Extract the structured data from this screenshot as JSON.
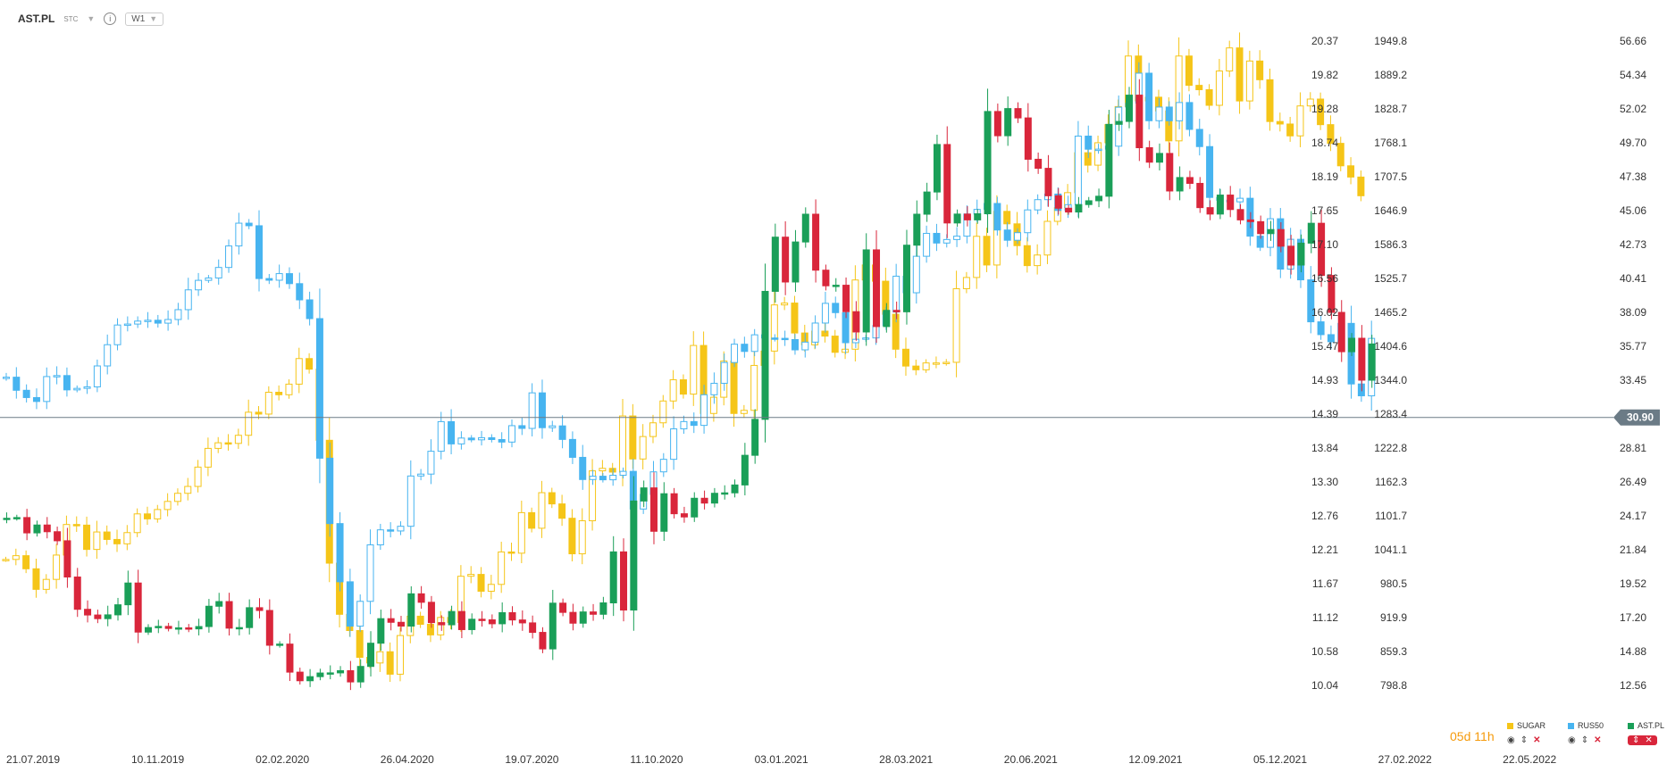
{
  "header": {
    "symbol": "AST.PL",
    "chart_kind": "STC",
    "interval": "W1"
  },
  "countdown": {
    "days": "05",
    "days_unit": "d",
    "hours": "11",
    "hours_unit": "h"
  },
  "legend": [
    {
      "name": "SUGAR",
      "color": "#f5c518"
    },
    {
      "name": "RUS50",
      "color": "#47b4f0"
    },
    {
      "name": "AST.PL",
      "color": "#1a9f58"
    }
  ],
  "colors": {
    "sugar": "#f5c518",
    "rus50": "#47b4f0",
    "ast_up": "#1a9f58",
    "ast_down": "#d9263b",
    "price_line": "#6b7b86",
    "price_tag": "#6b7b86"
  },
  "chart_data": {
    "type": "candlestick",
    "x_labels": [
      "21.07.2019",
      "10.11.2019",
      "02.02.2020",
      "26.04.2020",
      "19.07.2020",
      "11.10.2020",
      "03.01.2021",
      "28.03.2021",
      "20.06.2021",
      "12.09.2021",
      "05.12.2021",
      "27.02.2022",
      "22.05.2022"
    ],
    "axes": [
      {
        "name": "SUGAR",
        "ticks": [
          "20.37",
          "19.82",
          "19.28",
          "18.74",
          "18.19",
          "17.65",
          "17.10",
          "16.56",
          "16.02",
          "15.47",
          "14.93",
          "14.39",
          "13.84",
          "13.30",
          "12.76",
          "12.21",
          "11.67",
          "11.12",
          "10.58",
          "10.04"
        ],
        "range": [
          10.04,
          20.37
        ]
      },
      {
        "name": "RUS50",
        "ticks": [
          "1949.8",
          "1889.2",
          "1828.7",
          "1768.1",
          "1707.5",
          "1646.9",
          "1586.3",
          "1525.7",
          "1465.2",
          "1404.6",
          "1344.0",
          "1283.4",
          "1222.8",
          "1162.3",
          "1101.7",
          "1041.1",
          "980.5",
          "919.9",
          "859.3",
          "798.8"
        ],
        "range": [
          798.8,
          1949.8
        ]
      },
      {
        "name": "AST.PL",
        "ticks": [
          "56.66",
          "54.34",
          "52.02",
          "49.70",
          "47.38",
          "45.06",
          "42.73",
          "40.41",
          "38.09",
          "35.77",
          "33.45",
          "31.13",
          "28.81",
          "26.49",
          "24.17",
          "21.84",
          "19.52",
          "17.20",
          "14.88",
          "12.56"
        ],
        "range": [
          12.56,
          56.66
        ]
      }
    ],
    "current_price": "30.90",
    "series": [
      {
        "name": "SUGAR",
        "values": [
          12.06,
          12.12,
          11.91,
          11.58,
          11.74,
          12.13,
          12.62,
          12.61,
          12.22,
          12.5,
          12.38,
          12.31,
          12.49,
          12.79,
          12.71,
          12.86,
          12.99,
          13.12,
          13.23,
          13.54,
          13.84,
          13.93,
          13.92,
          14.05,
          14.42,
          14.39,
          14.74,
          14.7,
          14.87,
          15.28,
          15.11,
          13.97,
          12.0,
          11.18,
          10.92,
          10.49,
          10.4,
          10.58,
          10.22,
          10.84,
          11.15,
          11.02,
          10.85,
          11.13,
          11.05,
          11.79,
          11.82,
          11.55,
          11.66,
          12.18,
          12.16,
          12.81,
          12.56,
          13.13,
          12.95,
          12.72,
          12.15,
          12.68,
          13.48,
          13.52,
          13.46,
          14.36,
          13.67,
          14.03,
          14.25,
          14.6,
          14.94,
          14.71,
          15.49,
          14.4,
          14.66,
          15.24,
          14.4,
          14.45,
          15.17,
          15.4,
          16.14,
          16.17,
          15.69,
          15.5,
          15.72,
          15.64,
          15.38,
          15.43,
          16.54,
          16.78,
          16.52,
          15.99,
          15.43,
          15.16,
          15.1,
          15.21,
          15.21,
          15.22,
          16.4,
          16.58,
          17.24,
          16.78,
          17.64,
          17.44,
          17.09,
          16.77,
          16.94,
          17.48,
          17.7,
          17.94,
          18.58,
          18.38,
          18.74,
          19.03,
          19.32,
          20.13,
          19.41,
          19.47,
          19.25,
          18.77,
          20.13,
          19.66,
          19.59,
          19.34,
          19.89,
          20.26,
          19.41,
          20.05,
          19.75,
          19.08,
          19.04,
          18.85,
          19.33,
          19.44,
          19.03,
          18.73,
          18.37,
          18.19,
          17.89
        ]
      },
      {
        "name": "RUS50",
        "values": [
          1349.4,
          1326.0,
          1313.0,
          1306.0,
          1350.5,
          1352.3,
          1326.7,
          1329.4,
          1332.1,
          1369.5,
          1407.4,
          1442.6,
          1444.3,
          1449.6,
          1451.1,
          1445.9,
          1452.4,
          1470.0,
          1505.4,
          1522.4,
          1526.6,
          1545.4,
          1583.8,
          1624.5,
          1619.9,
          1525.6,
          1522.6,
          1534.4,
          1516.5,
          1487.5,
          1454.0,
          1204.7,
          1087.9,
          983.9,
          904.7,
          949.0,
          1049.9,
          1076.7,
          1074.7,
          1083.1,
          1172.9,
          1176.3,
          1217.1,
          1270.0,
          1230.2,
          1240.7,
          1237.5,
          1241.3,
          1238.0,
          1233.5,
          1262.8,
          1257.9,
          1321.4,
          1259.2,
          1262.4,
          1238.2,
          1206.2,
          1166.6,
          1172.5,
          1166.1,
          1174.2,
          1181.2,
          1113.9,
          1140.0,
          1180.3,
          1202.7,
          1257.1,
          1270.1,
          1263.3,
          1318.0,
          1338.5,
          1375.6,
          1408.3,
          1395.4,
          1425.1,
          1419.4,
          1418.8,
          1416.6,
          1398.2,
          1412.0,
          1446.1,
          1481.3,
          1464.7,
          1411.0,
          1417.1,
          1419.5,
          1441.7,
          1465.8,
          1529.8,
          1500.2,
          1565.4,
          1606.3,
          1589.0,
          1595.3,
          1601.3,
          1640.9,
          1649.1,
          1659.7,
          1612.3,
          1594.0,
          1607.5,
          1648.2,
          1666.5,
          1676.5,
          1647.2,
          1657.6,
          1780.0,
          1756.6,
          1756.7,
          1762.0,
          1831.6,
          1838.9,
          1892.4,
          1807.5,
          1831.9,
          1807.4,
          1840.0,
          1792.0,
          1761.3,
          1670.5,
          1665.5,
          1662.6,
          1669.0,
          1601.3,
          1581.4,
          1632.4,
          1542.4,
          1595.7,
          1523.3,
          1448.3,
          1425.4,
          1412.7,
          1445.5,
          1337.3,
          1316.1,
          1418.7
        ]
      },
      {
        "name": "AST.PL",
        "values": [
          24.0,
          24.05,
          23.0,
          23.54,
          23.08,
          22.46,
          19.98,
          17.77,
          17.38,
          17.13,
          17.39,
          18.08,
          19.57,
          16.21,
          16.52,
          16.6,
          16.46,
          16.5,
          16.43,
          16.59,
          17.98,
          18.3,
          16.48,
          16.52,
          17.88,
          17.69,
          15.31,
          15.39,
          13.47,
          12.88,
          13.16,
          13.41,
          13.42,
          13.57,
          12.8,
          13.86,
          15.45,
          17.13,
          16.88,
          16.62,
          18.83,
          18.25,
          16.86,
          16.71,
          17.62,
          16.38,
          17.09,
          17.05,
          16.78,
          17.54,
          17.04,
          16.84,
          16.19,
          15.06,
          18.19,
          17.56,
          16.82,
          17.59,
          17.43,
          18.21,
          21.7,
          17.72,
          25.18,
          26.08,
          23.11,
          25.68,
          24.31,
          24.09,
          25.37,
          25.04,
          25.71,
          25.74,
          26.28,
          28.31,
          30.77,
          39.53,
          43.24,
          40.17,
          42.91,
          44.81,
          40.98,
          39.91,
          39.95,
          38.14,
          36.75,
          42.37,
          37.12,
          38.23,
          38.13,
          42.69,
          44.81,
          46.33,
          49.58,
          44.21,
          44.82,
          44.42,
          44.84,
          51.84,
          50.18,
          52.04,
          51.4,
          48.57,
          47.95,
          46.07,
          45.22,
          44.96,
          45.47,
          45.73,
          46.04,
          50.96,
          51.16,
          52.96,
          49.36,
          48.37,
          48.97,
          46.4,
          47.32,
          46.92,
          45.26,
          44.82,
          46.12,
          45.13,
          44.42,
          44.3,
          43.48,
          43.76,
          42.62,
          41.33,
          42.83,
          44.19,
          40.62,
          38.09,
          35.4,
          36.32,
          33.45,
          35.93
        ]
      }
    ]
  }
}
